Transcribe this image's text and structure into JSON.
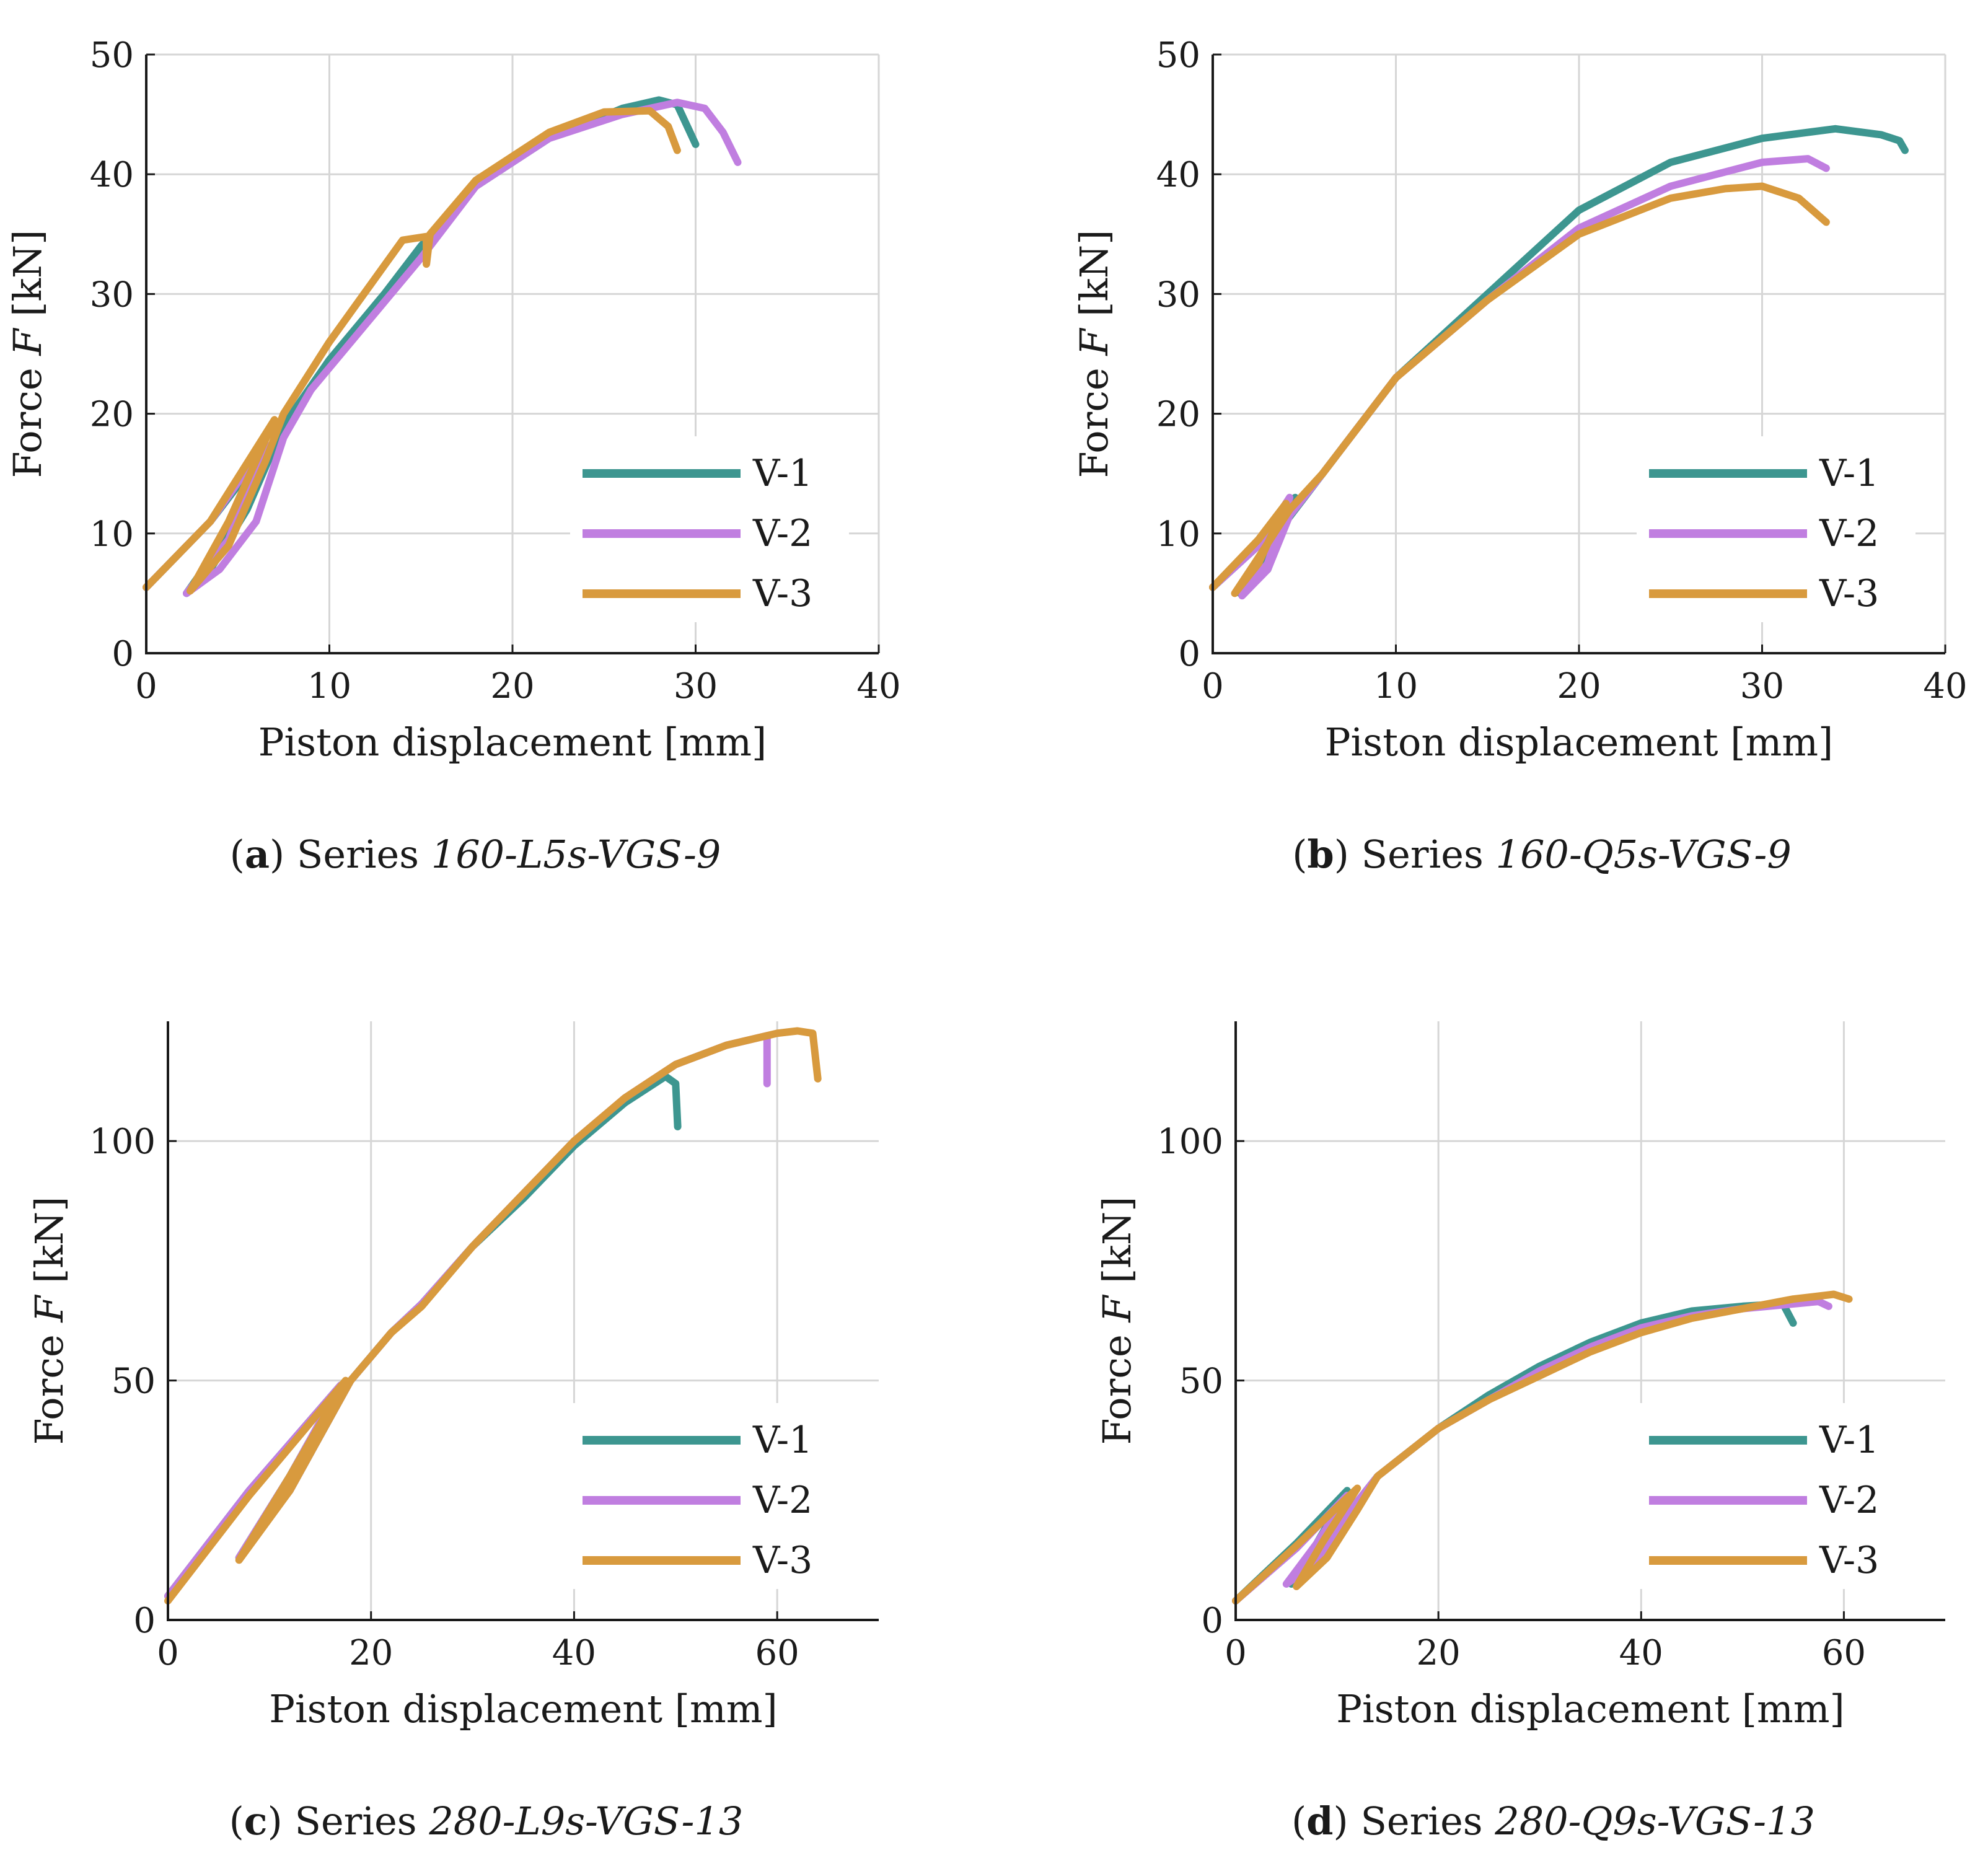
{
  "colors": {
    "V-1": "#3d9690",
    "V-2": "#c07ee0",
    "V-3": "#d89a3e"
  },
  "chart_data": [
    {
      "type": "line",
      "caption": {
        "letter": "a",
        "prefix": "Series ",
        "name": "160-L5s-VGS-9"
      },
      "xlabel": "Piston displacement [mm]",
      "ylabel_prefix": "Force ",
      "ylabel_var": "F",
      "ylabel_suffix": " [kN]",
      "xlim": [
        0,
        40
      ],
      "ylim": [
        0,
        50
      ],
      "xticks": [
        0,
        10,
        20,
        30,
        40
      ],
      "yticks": [
        0,
        10,
        20,
        30,
        40,
        50
      ],
      "grid": true,
      "legend": "lower-right",
      "series": [
        {
          "name": "V-1",
          "points": [
            [
              0,
              5.5
            ],
            [
              3.5,
              11
            ],
            [
              6.5,
              17
            ],
            [
              4.5,
              10
            ],
            [
              2.2,
              5
            ],
            [
              3.5,
              7
            ],
            [
              5.5,
              12
            ],
            [
              7.5,
              19
            ],
            [
              10,
              24.5
            ],
            [
              13,
              30
            ],
            [
              15,
              34
            ],
            [
              18,
              39
            ],
            [
              22,
              43
            ],
            [
              26,
              45.5
            ],
            [
              28,
              46.2
            ],
            [
              29,
              45.8
            ],
            [
              30,
              42.5
            ]
          ]
        },
        {
          "name": "V-2",
          "points": [
            [
              0,
              5.5
            ],
            [
              3.5,
              11
            ],
            [
              6.5,
              17.5
            ],
            [
              4.5,
              9.5
            ],
            [
              2.2,
              5
            ],
            [
              4,
              7
            ],
            [
              6,
              11
            ],
            [
              7.5,
              18
            ],
            [
              9,
              22
            ],
            [
              12,
              27.5
            ],
            [
              15,
              33
            ],
            [
              18,
              39
            ],
            [
              22,
              43
            ],
            [
              26,
              45
            ],
            [
              29,
              46
            ],
            [
              30.5,
              45.5
            ],
            [
              31.5,
              43.5
            ],
            [
              32.3,
              41
            ]
          ]
        },
        {
          "name": "V-3",
          "points": [
            [
              0,
              5.5
            ],
            [
              3.5,
              11
            ],
            [
              7,
              19.5
            ],
            [
              4.5,
              11
            ],
            [
              2.4,
              5.2
            ],
            [
              4.5,
              9
            ],
            [
              6.5,
              16
            ],
            [
              7.5,
              20
            ],
            [
              10,
              26
            ],
            [
              14,
              34.5
            ],
            [
              15.3,
              34.8
            ],
            [
              15.3,
              32.5
            ],
            [
              15.5,
              35
            ],
            [
              18,
              39.5
            ],
            [
              22,
              43.5
            ],
            [
              25,
              45.2
            ],
            [
              27.5,
              45.3
            ],
            [
              28.5,
              44
            ],
            [
              29,
              42
            ]
          ]
        }
      ]
    },
    {
      "type": "line",
      "caption": {
        "letter": "b",
        "prefix": "Series ",
        "name": "160-Q5s-VGS-9"
      },
      "xlabel": "Piston displacement [mm]",
      "ylabel_prefix": "Force ",
      "ylabel_var": "F",
      "ylabel_suffix": " [kN]",
      "xlim": [
        0,
        40
      ],
      "ylim": [
        0,
        50
      ],
      "xticks": [
        0,
        10,
        20,
        30,
        40
      ],
      "yticks": [
        0,
        10,
        20,
        30,
        40,
        50
      ],
      "grid": true,
      "legend": "lower-right",
      "series": [
        {
          "name": "V-1",
          "points": [
            [
              0,
              5.5
            ],
            [
              2.5,
              9
            ],
            [
              4.5,
              13
            ],
            [
              3,
              7
            ],
            [
              1.5,
              5
            ],
            [
              2.5,
              6.5
            ],
            [
              4,
              11
            ],
            [
              6,
              15
            ],
            [
              10,
              23
            ],
            [
              15,
              30
            ],
            [
              20,
              37
            ],
            [
              25,
              41
            ],
            [
              30,
              43
            ],
            [
              34,
              43.8
            ],
            [
              36.5,
              43.3
            ],
            [
              37.5,
              42.8
            ],
            [
              37.8,
              42
            ]
          ]
        },
        {
          "name": "V-2",
          "points": [
            [
              0,
              5.5
            ],
            [
              2.5,
              9
            ],
            [
              4.2,
              13
            ],
            [
              3,
              7.5
            ],
            [
              1.6,
              4.8
            ],
            [
              3,
              7
            ],
            [
              4.2,
              11.5
            ],
            [
              6,
              15
            ],
            [
              10,
              23
            ],
            [
              15,
              29.5
            ],
            [
              20,
              35.5
            ],
            [
              25,
              39
            ],
            [
              30,
              41
            ],
            [
              32.5,
              41.3
            ],
            [
              33.5,
              40.5
            ]
          ]
        },
        {
          "name": "V-3",
          "points": [
            [
              0,
              5.5
            ],
            [
              2.5,
              9.5
            ],
            [
              4,
              12.5
            ],
            [
              2.5,
              7.5
            ],
            [
              1.2,
              5
            ],
            [
              2.5,
              8
            ],
            [
              4.2,
              12
            ],
            [
              6,
              15
            ],
            [
              10,
              23
            ],
            [
              15,
              29.5
            ],
            [
              20,
              35
            ],
            [
              25,
              38
            ],
            [
              28,
              38.8
            ],
            [
              30,
              39
            ],
            [
              32,
              38
            ],
            [
              33.5,
              36
            ]
          ]
        }
      ]
    },
    {
      "type": "line",
      "caption": {
        "letter": "c",
        "prefix": "Series ",
        "name": "280-L9s-VGS-13"
      },
      "xlabel": "Piston displacement [mm]",
      "ylabel_prefix": "Force ",
      "ylabel_var": "F",
      "ylabel_suffix": " [kN]",
      "xlim": [
        0,
        70
      ],
      "ylim": [
        0,
        125
      ],
      "xticks": [
        0,
        20,
        40,
        60
      ],
      "yticks": [
        0,
        50,
        100
      ],
      "grid": true,
      "legend": "lower-right",
      "series": [
        {
          "name": "V-1",
          "points": [
            [
              0,
              5
            ],
            [
              8,
              27
            ],
            [
              17,
              49
            ],
            [
              12,
              30
            ],
            [
              7,
              13
            ],
            [
              12,
              27
            ],
            [
              18,
              50
            ],
            [
              22,
              60
            ],
            [
              25,
              66
            ],
            [
              30,
              78
            ],
            [
              35,
              88
            ],
            [
              40,
              99
            ],
            [
              45,
              108
            ],
            [
              49,
              113.5
            ],
            [
              50,
              112
            ],
            [
              50.2,
              103
            ]
          ]
        },
        {
          "name": "V-2",
          "points": [
            [
              0,
              5
            ],
            [
              8,
              27
            ],
            [
              17,
              49
            ],
            [
              12,
              30
            ],
            [
              7,
              13
            ],
            [
              12,
              27
            ],
            [
              18,
              50
            ],
            [
              22,
              60
            ],
            [
              25,
              66
            ],
            [
              30,
              78
            ],
            [
              35,
              89
            ],
            [
              40,
              100
            ],
            [
              45,
              109
            ],
            [
              50,
              116
            ],
            [
              55,
              120
            ],
            [
              59,
              122
            ],
            [
              59,
              112
            ]
          ]
        },
        {
          "name": "V-3",
          "points": [
            [
              0,
              4
            ],
            [
              8,
              26
            ],
            [
              17.5,
              50
            ],
            [
              12,
              30
            ],
            [
              7,
              12.5
            ],
            [
              12,
              27
            ],
            [
              18,
              50
            ],
            [
              22,
              60
            ],
            [
              25,
              65.5
            ],
            [
              30,
              78
            ],
            [
              35,
              89
            ],
            [
              40,
              100
            ],
            [
              45,
              109
            ],
            [
              50,
              116
            ],
            [
              55,
              120
            ],
            [
              60,
              122.5
            ],
            [
              62,
              123
            ],
            [
              63.5,
              122.5
            ],
            [
              64,
              113
            ]
          ]
        }
      ]
    },
    {
      "type": "line",
      "caption": {
        "letter": "d",
        "prefix": "Series ",
        "name": "280-Q9s-VGS-13"
      },
      "xlabel": "Piston displacement [mm]",
      "ylabel_prefix": "Force ",
      "ylabel_var": "F",
      "ylabel_suffix": " [kN]",
      "xlim": [
        0,
        70
      ],
      "ylim": [
        0,
        125
      ],
      "xticks": [
        0,
        20,
        40,
        60
      ],
      "yticks": [
        0,
        50,
        100
      ],
      "grid": true,
      "legend": "lower-right",
      "series": [
        {
          "name": "V-1",
          "points": [
            [
              0,
              4
            ],
            [
              6,
              16
            ],
            [
              11,
              27
            ],
            [
              8,
              16
            ],
            [
              5.5,
              7.5
            ],
            [
              8,
              12
            ],
            [
              11,
              22
            ],
            [
              14,
              30
            ],
            [
              17,
              35
            ],
            [
              20,
              40
            ],
            [
              25,
              47
            ],
            [
              30,
              53
            ],
            [
              35,
              58
            ],
            [
              40,
              62
            ],
            [
              45,
              64.5
            ],
            [
              50,
              65.5
            ],
            [
              54,
              66
            ],
            [
              55,
              62
            ]
          ]
        },
        {
          "name": "V-2",
          "points": [
            [
              0,
              4
            ],
            [
              6,
              15
            ],
            [
              11,
              26
            ],
            [
              8,
              16
            ],
            [
              5,
              7.5
            ],
            [
              8,
              12
            ],
            [
              11,
              22
            ],
            [
              14,
              30
            ],
            [
              17,
              35
            ],
            [
              20,
              40
            ],
            [
              25,
              46
            ],
            [
              30,
              52
            ],
            [
              35,
              57
            ],
            [
              40,
              61
            ],
            [
              45,
              63.5
            ],
            [
              50,
              65
            ],
            [
              55,
              66
            ],
            [
              57.5,
              66.5
            ],
            [
              58.5,
              65.5
            ]
          ]
        },
        {
          "name": "V-3",
          "points": [
            [
              0,
              4
            ],
            [
              6,
              15.5
            ],
            [
              12,
              27.5
            ],
            [
              8.5,
              16
            ],
            [
              6,
              7
            ],
            [
              9,
              13
            ],
            [
              12,
              23
            ],
            [
              14,
              30
            ],
            [
              17,
              35
            ],
            [
              20,
              40
            ],
            [
              25,
              46
            ],
            [
              30,
              51
            ],
            [
              35,
              56
            ],
            [
              40,
              60
            ],
            [
              45,
              63
            ],
            [
              50,
              65
            ],
            [
              55,
              67
            ],
            [
              59,
              68
            ],
            [
              60.5,
              67
            ]
          ]
        }
      ]
    }
  ]
}
